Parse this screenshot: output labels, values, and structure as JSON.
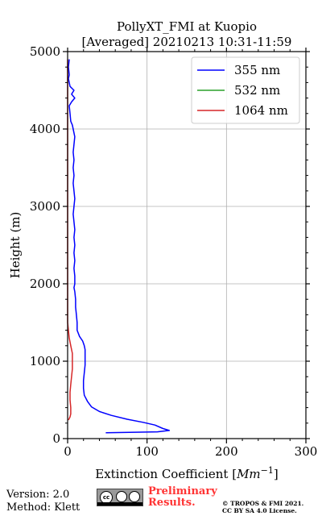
{
  "chart_data": {
    "type": "line",
    "title": "PollyXT_FMI at Kuopio",
    "subtitle": "[Averaged] 20210213 10:31-11:59",
    "xlabel": "Extinction Coefficient [Mm^-1]",
    "ylabel": "Height (m)",
    "xlim": [
      0,
      300
    ],
    "ylim": [
      0,
      5000
    ],
    "xticks": [
      0,
      100,
      200,
      300
    ],
    "yticks": [
      0,
      1000,
      2000,
      3000,
      4000,
      5000
    ],
    "grid": true,
    "legend_position": "top-right",
    "series": [
      {
        "name": "355 nm",
        "color": "#0000ff",
        "points": [
          [
            48,
            75
          ],
          [
            85,
            82
          ],
          [
            113,
            88
          ],
          [
            128,
            105
          ],
          [
            120,
            130
          ],
          [
            110,
            175
          ],
          [
            95,
            210
          ],
          [
            75,
            250
          ],
          [
            55,
            300
          ],
          [
            40,
            350
          ],
          [
            30,
            410
          ],
          [
            25,
            480
          ],
          [
            21,
            560
          ],
          [
            20,
            650
          ],
          [
            20,
            750
          ],
          [
            21,
            850
          ],
          [
            22,
            950
          ],
          [
            22,
            1050
          ],
          [
            22,
            1150
          ],
          [
            21,
            1200
          ],
          [
            19,
            1260
          ],
          [
            15,
            1320
          ],
          [
            12,
            1400
          ],
          [
            12,
            1500
          ],
          [
            11,
            1600
          ],
          [
            10,
            1700
          ],
          [
            10,
            1800
          ],
          [
            9,
            1900
          ],
          [
            8,
            1950
          ],
          [
            9,
            2000
          ],
          [
            9,
            2100
          ],
          [
            8,
            2200
          ],
          [
            9,
            2300
          ],
          [
            8,
            2400
          ],
          [
            9,
            2500
          ],
          [
            8,
            2600
          ],
          [
            9,
            2700
          ],
          [
            8,
            2800
          ],
          [
            7,
            2900
          ],
          [
            8,
            3000
          ],
          [
            9,
            3100
          ],
          [
            8,
            3200
          ],
          [
            7,
            3300
          ],
          [
            8,
            3400
          ],
          [
            7,
            3500
          ],
          [
            8,
            3600
          ],
          [
            7,
            3700
          ],
          [
            8,
            3800
          ],
          [
            9,
            3900
          ],
          [
            8,
            3950
          ],
          [
            6,
            4050
          ],
          [
            4,
            4100
          ],
          [
            3,
            4200
          ],
          [
            2,
            4300
          ],
          [
            5,
            4350
          ],
          [
            9,
            4400
          ],
          [
            5,
            4450
          ],
          [
            8,
            4500
          ],
          [
            3,
            4550
          ],
          [
            2,
            4600
          ],
          [
            1,
            4650
          ],
          [
            2,
            4700
          ],
          [
            1,
            4800
          ],
          [
            2,
            4900
          ]
        ]
      },
      {
        "name": "532 nm",
        "color": "#2ca02c",
        "points": []
      },
      {
        "name": "1064 nm",
        "color": "#d62728",
        "points": [
          [
            1,
            240
          ],
          [
            3,
            280
          ],
          [
            4,
            320
          ],
          [
            4,
            400
          ],
          [
            3,
            500
          ],
          [
            3,
            600
          ],
          [
            4,
            700
          ],
          [
            5,
            800
          ],
          [
            6,
            900
          ],
          [
            6,
            1000
          ],
          [
            6,
            1100
          ],
          [
            4,
            1200
          ],
          [
            2,
            1300
          ],
          [
            1,
            1400
          ],
          [
            0,
            1500
          ],
          [
            0,
            1700
          ],
          [
            0,
            2000
          ],
          [
            0,
            2500
          ],
          [
            0,
            3000
          ],
          [
            0,
            3500
          ],
          [
            0,
            4000
          ],
          [
            0,
            4500
          ],
          [
            0,
            4900
          ]
        ]
      }
    ]
  },
  "footer": {
    "version": "Version: 2.0",
    "method": "Method: Klett",
    "license_badge": "cc-by-sa-badge-icon",
    "preliminary_line1": "Preliminary",
    "preliminary_line2": "Results.",
    "copyright_line1": "© TROPOS & FMI 2021.",
    "copyright_line2": "CC BY SA 4.0 License."
  }
}
